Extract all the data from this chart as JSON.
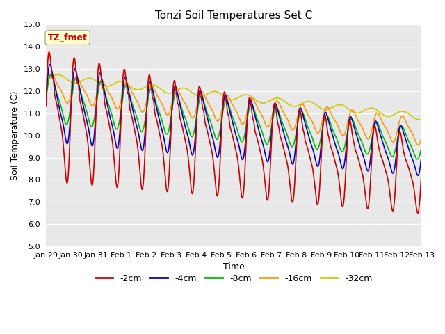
{
  "title": "Tonzi Soil Temperatures Set C",
  "xlabel": "Time",
  "ylabel": "Soil Temperature (C)",
  "ylim": [
    5.0,
    15.0
  ],
  "yticks": [
    5.0,
    6.0,
    7.0,
    8.0,
    9.0,
    10.0,
    11.0,
    12.0,
    13.0,
    14.0,
    15.0
  ],
  "xtick_labels": [
    "Jan 29",
    "Jan 30",
    "Jan 31",
    "Feb 1",
    "Feb 2",
    "Feb 3",
    "Feb 4",
    "Feb 5",
    "Feb 6",
    "Feb 7",
    "Feb 8",
    "Feb 9",
    "Feb 10",
    "Feb 11",
    "Feb 12",
    "Feb 13"
  ],
  "colors": {
    "-2cm": "#cc0000",
    "-4cm": "#0000cc",
    "-8cm": "#00bb00",
    "-16cm": "#ff9900",
    "-32cm": "#cccc00"
  },
  "annotation_label": "TZ_fmet",
  "annotation_color": "#cc0000",
  "annotation_bg": "#ffffcc",
  "plot_bg": "#e8e8e8",
  "fig_bg": "#ffffff",
  "title_fontsize": 11,
  "axis_label_fontsize": 9,
  "tick_fontsize": 8,
  "legend_fontsize": 9,
  "linewidth": 1.2
}
